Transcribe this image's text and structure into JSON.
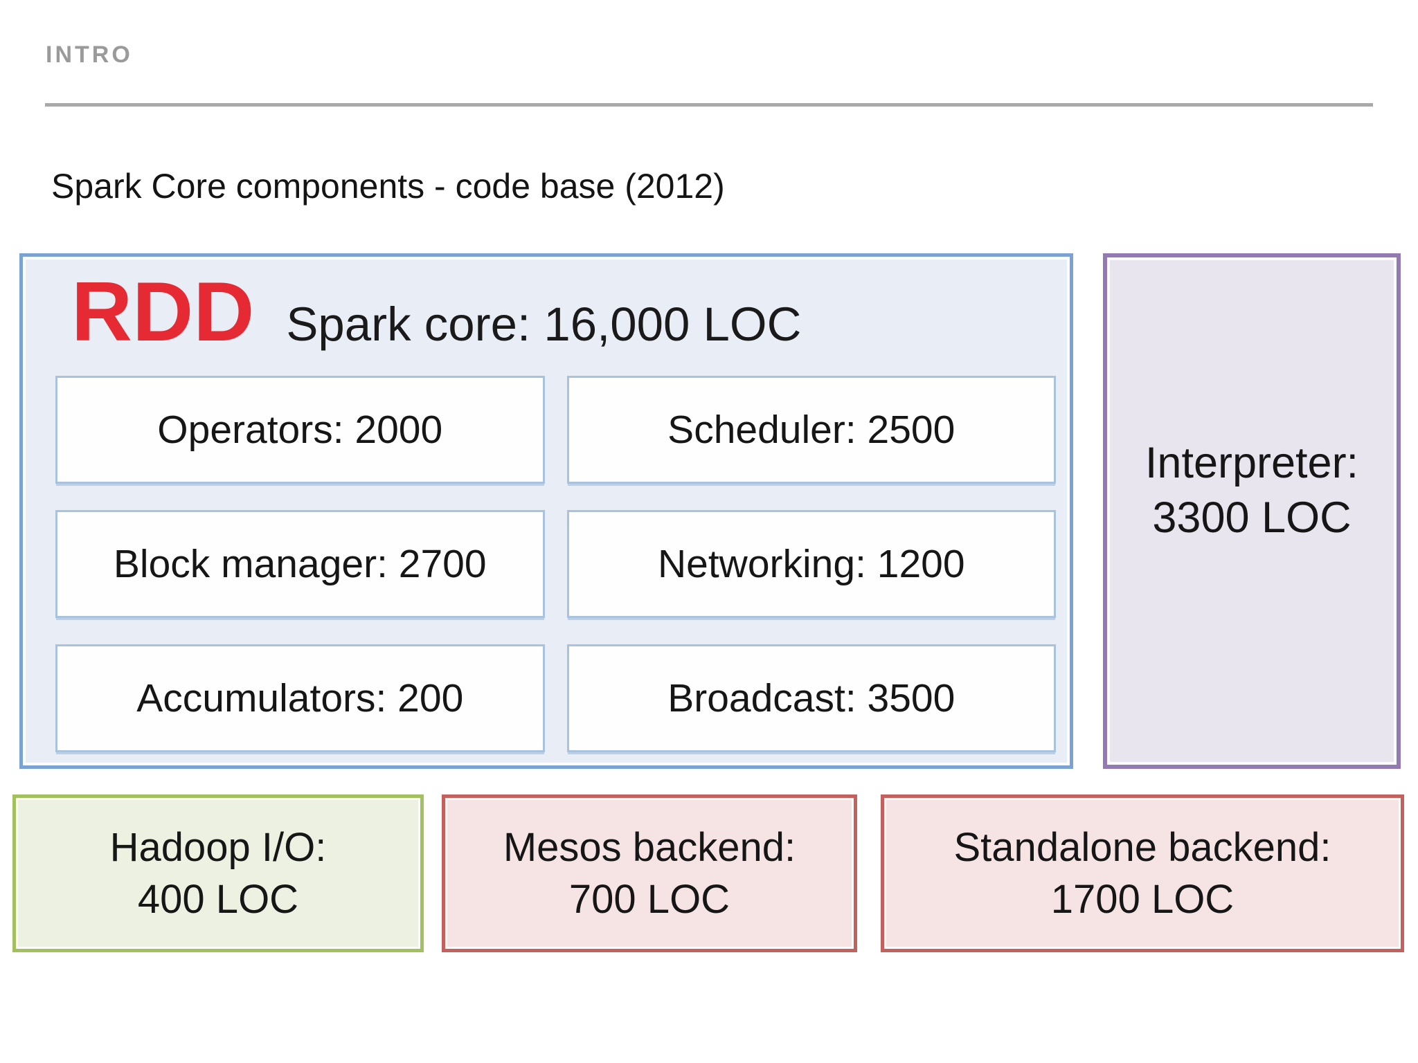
{
  "page": {
    "eyebrow": "INTRO",
    "title": "Spark Core components - code base (2012)"
  },
  "diagram": {
    "core": {
      "heading_accent": "RDD",
      "heading": "Spark core: 16,000 LOC",
      "components": [
        {
          "label": "Operators: 2000"
        },
        {
          "label": "Scheduler: 2500"
        },
        {
          "label": "Block manager: 2700"
        },
        {
          "label": "Networking: 1200"
        },
        {
          "label": "Accumulators: 200"
        },
        {
          "label": "Broadcast: 3500"
        }
      ]
    },
    "interpreter": {
      "line1": "Interpreter:",
      "line2": "3300 LOC"
    },
    "bottom_boxes": [
      {
        "line1": "Hadoop I/O:",
        "line2": "400 LOC",
        "variant": "green"
      },
      {
        "line1": "Mesos backend:",
        "line2": "700 LOC",
        "variant": "red"
      },
      {
        "line1": "Standalone backend:",
        "line2": "1700 LOC",
        "variant": "red"
      }
    ],
    "colors": {
      "rdd_accent": "#e62a33",
      "core_border": "#7ca1d3",
      "core_fill": "#e9edf5",
      "component_border": "#a9c3de",
      "component_fill": "#fefefe",
      "interpreter_border": "#927ab2",
      "interpreter_fill": "#e8e5ef",
      "green_border": "#a3c05f",
      "green_fill": "#edf1e1",
      "red_border": "#c2615e",
      "red_fill": "#f5e4e3",
      "rule_gray": "#a9a9a9",
      "eyebrow_gray": "#9a9a9a"
    }
  }
}
